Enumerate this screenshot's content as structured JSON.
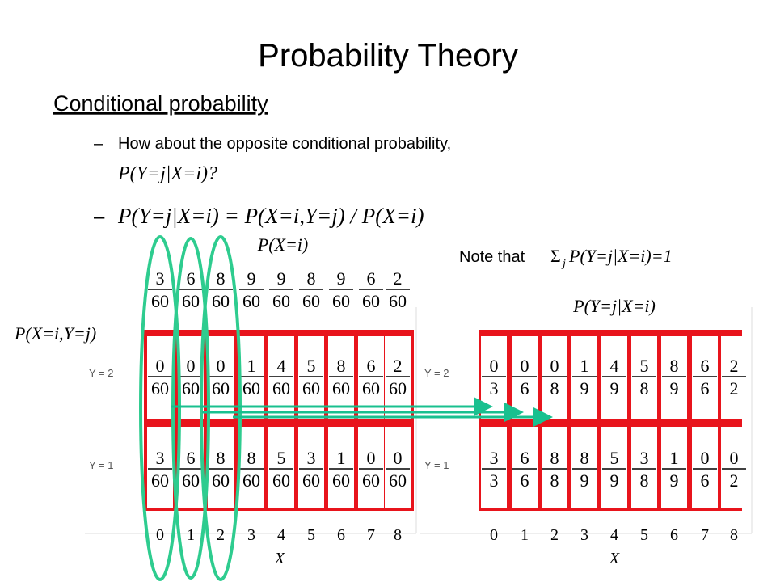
{
  "header": {
    "title": "Probability Theory"
  },
  "section": {
    "heading": "Conditional probability",
    "bullets": [
      {
        "text": "How about the opposite conditional probability,",
        "math": "P(Y=j|X=i)?"
      },
      {
        "math": "P(Y=j|X=i) = P(X=i,Y=j) / P(X=i)"
      }
    ]
  },
  "note": {
    "text": "Note that",
    "sum": "Σ",
    "sub": "j",
    "math": "P(Y=j|X=i)=1"
  },
  "left": {
    "label_marginal": "P(X=i)",
    "label_joint": "P(X=i,Y=j)",
    "marginal": {
      "numerators": [
        3,
        6,
        8,
        9,
        9,
        8,
        9,
        6,
        2
      ],
      "denominators": [
        60,
        60,
        60,
        60,
        60,
        60,
        60,
        60,
        60
      ]
    },
    "rows": [
      {
        "label": "Y = 2",
        "numerators": [
          0,
          0,
          0,
          1,
          4,
          5,
          8,
          6,
          2
        ],
        "denominators": [
          60,
          60,
          60,
          60,
          60,
          60,
          60,
          60,
          60
        ]
      },
      {
        "label": "Y = 1",
        "numerators": [
          3,
          6,
          8,
          8,
          5,
          3,
          1,
          0,
          0
        ],
        "denominators": [
          60,
          60,
          60,
          60,
          60,
          60,
          60,
          60,
          60
        ]
      }
    ],
    "x_ticks": [
      0,
      1,
      2,
      3,
      4,
      5,
      6,
      7,
      8
    ],
    "x_label": "X"
  },
  "right": {
    "label": "P(Y=j|X=i)",
    "rows": [
      {
        "label": "Y = 2",
        "numerators": [
          0,
          0,
          0,
          1,
          4,
          5,
          8,
          6,
          2
        ],
        "denominators": [
          3,
          6,
          8,
          9,
          9,
          8,
          9,
          6,
          2
        ]
      },
      {
        "label": "Y = 1",
        "numerators": [
          3,
          6,
          8,
          8,
          5,
          3,
          1,
          0,
          0
        ],
        "denominators": [
          3,
          6,
          8,
          9,
          9,
          8,
          9,
          6,
          2
        ]
      }
    ],
    "x_ticks": [
      0,
      1,
      2,
      3,
      4,
      5,
      6,
      7,
      8
    ],
    "x_label": "X"
  }
}
